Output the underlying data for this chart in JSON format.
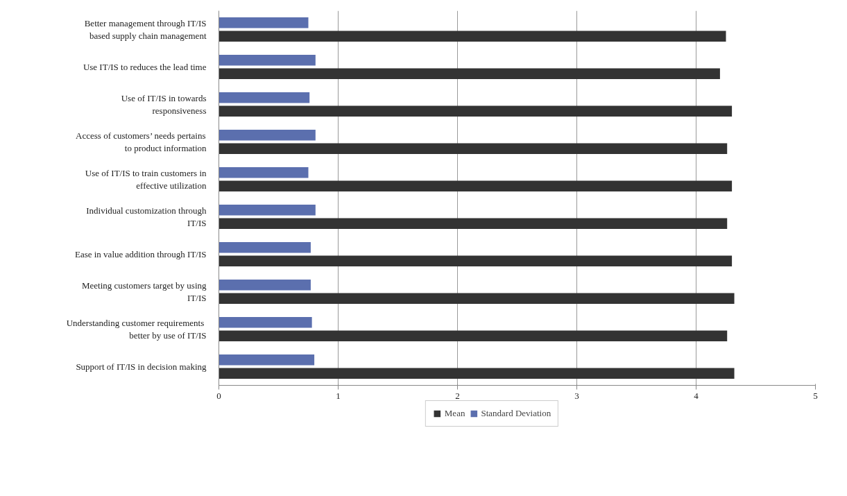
{
  "chart_data": {
    "type": "bar",
    "orientation": "horizontal",
    "categories": [
      "Better management through IT/IS based supply chain management",
      "Use IT/IS to reduces the lead time",
      "Use of IT/IS in towards responsiveness",
      "Access of customers’ needs pertains to product information",
      "Use of IT/IS to train customers in effective utilization",
      "Individual customization through IT/IS",
      "Ease in value addition through IT/IS",
      "Meeting customers target by using IT/IS",
      "Understanding  customer requirements better by use of IT/IS",
      "Support of IT/IS in decision making"
    ],
    "series": [
      {
        "name": "Mean",
        "color": "#333333",
        "values": [
          4.25,
          4.2,
          4.3,
          4.26,
          4.3,
          4.26,
          4.3,
          4.32,
          4.26,
          4.32
        ]
      },
      {
        "name": "Standard Deviation",
        "color": "#5b6fae",
        "values": [
          0.75,
          0.81,
          0.76,
          0.81,
          0.75,
          0.81,
          0.77,
          0.77,
          0.78,
          0.8
        ]
      }
    ],
    "xlim": [
      0,
      5
    ],
    "xticks": [
      0,
      1,
      2,
      3,
      4,
      5
    ],
    "grid": "x",
    "legend": "bottom"
  }
}
